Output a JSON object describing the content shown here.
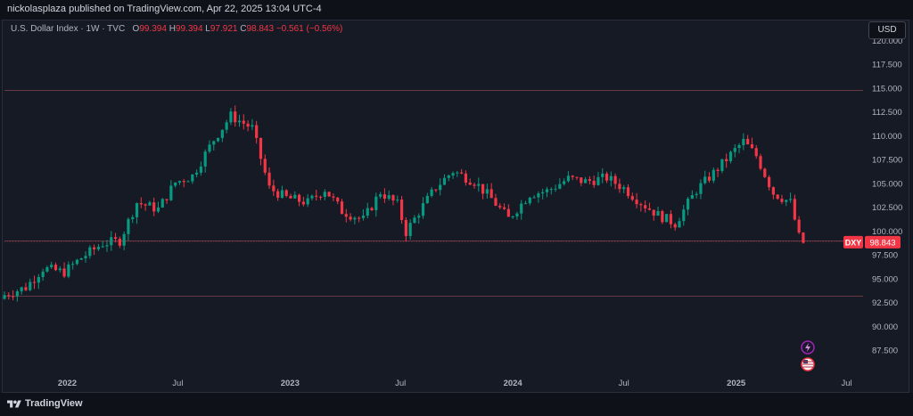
{
  "header": {
    "publish_text": "nickolasplaza published on TradingView.com, Apr 22, 2025 13:04 UTC-4"
  },
  "legend": {
    "symbol": "U.S. Dollar Index · 1W · TVC",
    "o_label": "O",
    "o_value": "99.394",
    "h_label": "H",
    "h_value": "99.394",
    "l_label": "L",
    "l_value": "97.921",
    "c_label": "C",
    "c_value": "98.843",
    "change": "−0.561 (−0.56%)"
  },
  "toolbar": {
    "currency_label": "USD"
  },
  "branding": {
    "name": "TradingView"
  },
  "price_tag": {
    "symbol": "DXY",
    "value": "98.843"
  },
  "icons": [
    "lightning-icon",
    "us-flag-icon"
  ],
  "colors": {
    "up": "#089981",
    "down": "#f23645",
    "background": "#161a25",
    "axis_text": "#b2b5be",
    "price_tag": "#f23645"
  },
  "chart_data": {
    "type": "candlestick",
    "title": "U.S. Dollar Index · 1W · TVC",
    "ylim": [
      85.0,
      122.0
    ],
    "y_ticks": [
      "87.500",
      "90.000",
      "92.500",
      "95.000",
      "97.500",
      "100.000",
      "102.500",
      "105.000",
      "107.500",
      "110.000",
      "112.500",
      "115.000",
      "117.500",
      "120.000"
    ],
    "x_ticks": [
      {
        "label": "2022",
        "date": "2022-01-01"
      },
      {
        "label": "Jul",
        "date": "2022-07-01"
      },
      {
        "label": "2023",
        "date": "2023-01-01"
      },
      {
        "label": "Jul",
        "date": "2023-07-01"
      },
      {
        "label": "2024",
        "date": "2024-01-01"
      },
      {
        "label": "Jul",
        "date": "2024-07-01"
      },
      {
        "label": "2025",
        "date": "2025-01-01"
      },
      {
        "label": "Jul",
        "date": "2025-07-01"
      }
    ],
    "x_range": [
      "2021-09-20",
      "2025-07-28"
    ],
    "horizontal_levels": [
      114.8,
      99.0,
      93.2
    ],
    "last_price": 98.843,
    "weekly_closes": [
      {
        "week_start": "2021-09-20",
        "close": 93.3
      },
      {
        "week_start": "2021-10-25",
        "close": 94.1
      },
      {
        "week_start": "2021-11-22",
        "close": 96.1
      },
      {
        "week_start": "2021-12-27",
        "close": 95.7
      },
      {
        "week_start": "2022-01-24",
        "close": 97.2
      },
      {
        "week_start": "2022-02-28",
        "close": 98.7
      },
      {
        "week_start": "2022-03-28",
        "close": 99.0
      },
      {
        "week_start": "2022-04-25",
        "close": 103.0
      },
      {
        "week_start": "2022-05-30",
        "close": 102.3
      },
      {
        "week_start": "2022-06-27",
        "close": 105.1
      },
      {
        "week_start": "2022-07-25",
        "close": 105.8
      },
      {
        "week_start": "2022-08-29",
        "close": 109.6
      },
      {
        "week_start": "2022-09-26",
        "close": 112.1
      },
      {
        "week_start": "2022-10-31",
        "close": 110.8
      },
      {
        "week_start": "2022-11-28",
        "close": 104.5
      },
      {
        "week_start": "2022-12-26",
        "close": 103.5
      },
      {
        "week_start": "2023-01-30",
        "close": 103.0
      },
      {
        "week_start": "2023-02-27",
        "close": 104.4
      },
      {
        "week_start": "2023-03-27",
        "close": 102.1
      },
      {
        "week_start": "2023-05-01",
        "close": 101.2
      },
      {
        "week_start": "2023-05-29",
        "close": 104.1
      },
      {
        "week_start": "2023-06-26",
        "close": 102.8
      },
      {
        "week_start": "2023-07-10",
        "close": 99.9
      },
      {
        "week_start": "2023-07-31",
        "close": 102.0
      },
      {
        "week_start": "2023-08-28",
        "close": 104.6
      },
      {
        "week_start": "2023-09-25",
        "close": 106.3
      },
      {
        "week_start": "2023-10-30",
        "close": 105.2
      },
      {
        "week_start": "2023-11-27",
        "close": 103.4
      },
      {
        "week_start": "2023-12-25",
        "close": 101.3
      },
      {
        "week_start": "2024-01-29",
        "close": 103.9
      },
      {
        "week_start": "2024-02-26",
        "close": 104.2
      },
      {
        "week_start": "2024-04-01",
        "close": 105.5
      },
      {
        "week_start": "2024-04-29",
        "close": 105.2
      },
      {
        "week_start": "2024-06-03",
        "close": 105.6
      },
      {
        "week_start": "2024-07-01",
        "close": 104.5
      },
      {
        "week_start": "2024-07-29",
        "close": 103.0
      },
      {
        "week_start": "2024-08-26",
        "close": 101.7
      },
      {
        "week_start": "2024-09-23",
        "close": 100.8
      },
      {
        "week_start": "2024-10-28",
        "close": 104.3
      },
      {
        "week_start": "2024-11-25",
        "close": 106.1
      },
      {
        "week_start": "2024-12-30",
        "close": 108.5
      },
      {
        "week_start": "2025-01-13",
        "close": 109.4
      },
      {
        "week_start": "2025-02-03",
        "close": 107.9
      },
      {
        "week_start": "2025-03-03",
        "close": 104.0
      },
      {
        "week_start": "2025-03-31",
        "close": 103.0
      },
      {
        "week_start": "2025-04-14",
        "close": 99.4
      },
      {
        "week_start": "2025-04-21",
        "close": 98.8
      }
    ]
  }
}
